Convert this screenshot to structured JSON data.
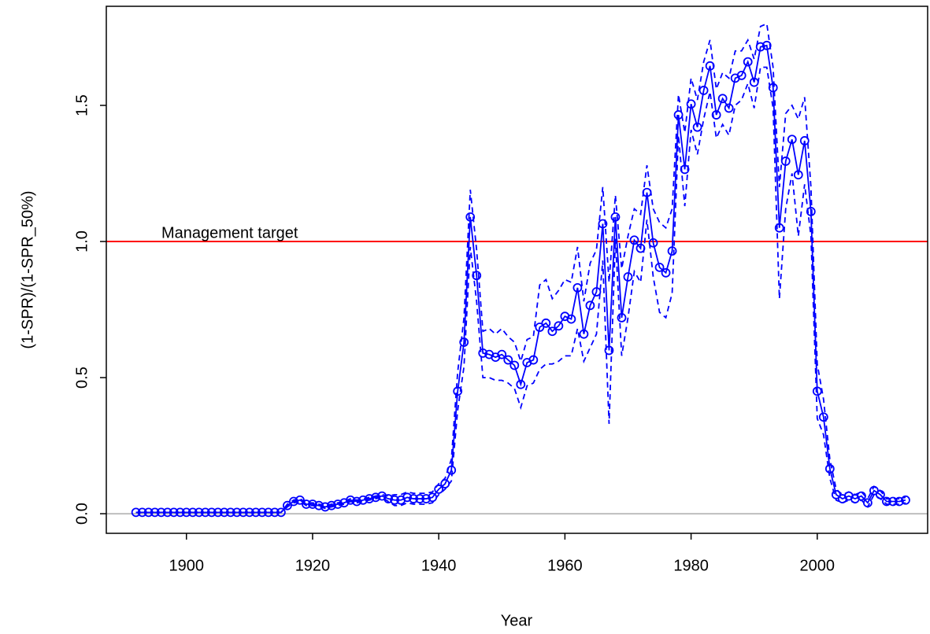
{
  "chart_data": {
    "type": "line",
    "x_label": "Year",
    "y_label": "(1-SPR)/(1-SPR_50%)",
    "x": [
      1892,
      1893,
      1894,
      1895,
      1896,
      1897,
      1898,
      1899,
      1900,
      1901,
      1902,
      1903,
      1904,
      1905,
      1906,
      1907,
      1908,
      1909,
      1910,
      1911,
      1912,
      1913,
      1914,
      1915,
      1916,
      1917,
      1918,
      1919,
      1920,
      1921,
      1922,
      1923,
      1924,
      1925,
      1926,
      1927,
      1928,
      1929,
      1930,
      1931,
      1932,
      1933,
      1934,
      1935,
      1936,
      1937,
      1938,
      1939,
      1940,
      1941,
      1942,
      1943,
      1944,
      1945,
      1946,
      1947,
      1948,
      1949,
      1950,
      1951,
      1952,
      1953,
      1954,
      1955,
      1956,
      1957,
      1958,
      1959,
      1960,
      1961,
      1962,
      1963,
      1964,
      1965,
      1966,
      1967,
      1968,
      1969,
      1970,
      1971,
      1972,
      1973,
      1974,
      1975,
      1976,
      1977,
      1978,
      1979,
      1980,
      1981,
      1982,
      1983,
      1984,
      1985,
      1986,
      1987,
      1988,
      1989,
      1990,
      1991,
      1992,
      1993,
      1994,
      1995,
      1996,
      1997,
      1998,
      1999,
      2000,
      2001,
      2002,
      2003,
      2004,
      2005,
      2006,
      2007,
      2008,
      2009,
      2010,
      2011,
      2012,
      2013,
      2014
    ],
    "series": [
      {
        "color": "#0000ff",
        "style": "solid",
        "markers": true,
        "values": [
          0.005,
          0.005,
          0.005,
          0.005,
          0.005,
          0.005,
          0.005,
          0.005,
          0.005,
          0.005,
          0.005,
          0.005,
          0.005,
          0.005,
          0.005,
          0.005,
          0.005,
          0.005,
          0.005,
          0.005,
          0.005,
          0.005,
          0.005,
          0.005,
          0.03,
          0.045,
          0.05,
          0.035,
          0.035,
          0.03,
          0.025,
          0.03,
          0.035,
          0.04,
          0.05,
          0.045,
          0.05,
          0.055,
          0.06,
          0.065,
          0.055,
          0.05,
          0.05,
          0.06,
          0.055,
          0.055,
          0.055,
          0.06,
          0.09,
          0.11,
          0.16,
          0.45,
          0.63,
          1.09,
          0.875,
          0.59,
          0.585,
          0.575,
          0.585,
          0.565,
          0.545,
          0.475,
          0.555,
          0.565,
          0.685,
          0.7,
          0.67,
          0.69,
          0.725,
          0.715,
          0.83,
          0.66,
          0.765,
          0.815,
          1.065,
          0.6,
          1.09,
          0.72,
          0.87,
          1.005,
          0.975,
          1.18,
          0.995,
          0.905,
          0.885,
          0.965,
          1.465,
          1.265,
          1.505,
          1.42,
          1.555,
          1.645,
          1.465,
          1.525,
          1.49,
          1.6,
          1.61,
          1.66,
          1.585,
          1.715,
          1.72,
          1.565,
          1.05,
          1.295,
          1.375,
          1.245,
          1.37,
          1.11,
          0.45,
          0.355,
          0.165,
          0.07,
          0.055,
          0.065,
          0.055,
          0.065,
          0.04,
          0.085,
          0.07,
          0.045,
          0.045,
          0.045,
          0.05
        ]
      },
      {
        "color": "#0000ff",
        "style": "dashed",
        "markers": false,
        "values": [
          0.005,
          0.005,
          0.005,
          0.005,
          0.005,
          0.005,
          0.005,
          0.005,
          0.005,
          0.005,
          0.005,
          0.005,
          0.005,
          0.005,
          0.005,
          0.005,
          0.005,
          0.005,
          0.005,
          0.005,
          0.005,
          0.005,
          0.005,
          0.005,
          0.035,
          0.05,
          0.055,
          0.04,
          0.04,
          0.035,
          0.03,
          0.035,
          0.04,
          0.045,
          0.055,
          0.05,
          0.055,
          0.06,
          0.065,
          0.07,
          0.065,
          0.07,
          0.07,
          0.08,
          0.075,
          0.075,
          0.075,
          0.08,
          0.11,
          0.13,
          0.2,
          0.52,
          0.72,
          1.19,
          0.97,
          0.67,
          0.68,
          0.66,
          0.68,
          0.65,
          0.63,
          0.56,
          0.64,
          0.65,
          0.84,
          0.86,
          0.79,
          0.82,
          0.86,
          0.85,
          0.98,
          0.78,
          0.92,
          0.97,
          1.2,
          0.85,
          1.17,
          0.9,
          1.02,
          1.12,
          1.1,
          1.28,
          1.12,
          1.07,
          1.05,
          1.12,
          1.54,
          1.4,
          1.6,
          1.52,
          1.66,
          1.74,
          1.56,
          1.62,
          1.6,
          1.7,
          1.7,
          1.74,
          1.67,
          1.79,
          1.8,
          1.64,
          1.2,
          1.47,
          1.5,
          1.45,
          1.53,
          1.2,
          0.55,
          0.42,
          0.2,
          0.09,
          0.07,
          0.08,
          0.07,
          0.08,
          0.055,
          0.1,
          0.085,
          0.055,
          0.055,
          0.055,
          0.06
        ]
      },
      {
        "color": "#0000ff",
        "style": "dashed",
        "markers": false,
        "values": [
          0.005,
          0.005,
          0.005,
          0.005,
          0.005,
          0.005,
          0.005,
          0.005,
          0.005,
          0.005,
          0.005,
          0.005,
          0.005,
          0.005,
          0.005,
          0.005,
          0.005,
          0.005,
          0.005,
          0.005,
          0.005,
          0.005,
          0.005,
          0.005,
          0.025,
          0.04,
          0.045,
          0.03,
          0.03,
          0.025,
          0.02,
          0.025,
          0.03,
          0.035,
          0.045,
          0.04,
          0.045,
          0.05,
          0.055,
          0.06,
          0.045,
          0.03,
          0.03,
          0.04,
          0.035,
          0.035,
          0.035,
          0.04,
          0.07,
          0.09,
          0.12,
          0.38,
          0.54,
          0.98,
          0.78,
          0.5,
          0.5,
          0.49,
          0.49,
          0.48,
          0.46,
          0.39,
          0.47,
          0.48,
          0.53,
          0.55,
          0.55,
          0.56,
          0.58,
          0.58,
          0.68,
          0.56,
          0.61,
          0.66,
          0.93,
          0.33,
          1.01,
          0.58,
          0.72,
          0.89,
          0.85,
          1.08,
          0.87,
          0.74,
          0.72,
          0.81,
          1.39,
          1.13,
          1.41,
          1.32,
          1.45,
          1.55,
          1.38,
          1.43,
          1.39,
          1.5,
          1.52,
          1.58,
          1.49,
          1.64,
          1.64,
          1.49,
          0.79,
          1.12,
          1.25,
          1.02,
          1.21,
          1.02,
          0.35,
          0.29,
          0.13,
          0.05,
          0.04,
          0.05,
          0.04,
          0.05,
          0.025,
          0.07,
          0.055,
          0.035,
          0.035,
          0.035,
          0.04
        ]
      }
    ],
    "hlines": [
      {
        "value": 1,
        "color": "#ff0000",
        "label": "Management target"
      },
      {
        "value": 0,
        "color": "#bebebe"
      }
    ],
    "xlim": [
      1887.3,
      2017.5
    ],
    "ylim": [
      -0.072,
      1.864
    ],
    "xticks": [
      1900,
      1920,
      1940,
      1960,
      1980,
      2000
    ],
    "yticks": [
      {
        "value": 0,
        "label": "0.0"
      },
      {
        "value": 0.5,
        "label": "0.5"
      },
      {
        "value": 1,
        "label": "1.0"
      },
      {
        "value": 1.5,
        "label": "1.5"
      }
    ]
  }
}
